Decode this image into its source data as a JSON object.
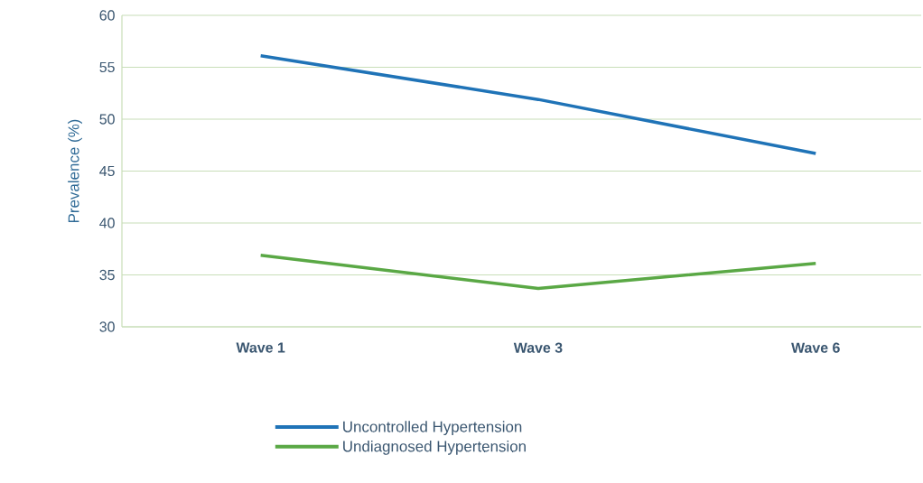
{
  "chart_data": {
    "type": "line",
    "ylabel": "Prevalence (%)",
    "categories": [
      "Wave 1",
      "Wave 3",
      "Wave 6"
    ],
    "series": [
      {
        "name": "Uncontrolled Hypertension",
        "color": "#1f73b7",
        "values": [
          56.1,
          51.9,
          46.7
        ]
      },
      {
        "name": "Undiagnosed Hypertension",
        "color": "#5aa845",
        "values": [
          36.9,
          33.7,
          36.1
        ]
      }
    ],
    "ylim": [
      30,
      60
    ],
    "yticks": [
      30,
      35,
      40,
      45,
      50,
      55,
      60
    ],
    "grid": "y",
    "legend": "bottom",
    "marker": "none",
    "line_style": "solid"
  }
}
